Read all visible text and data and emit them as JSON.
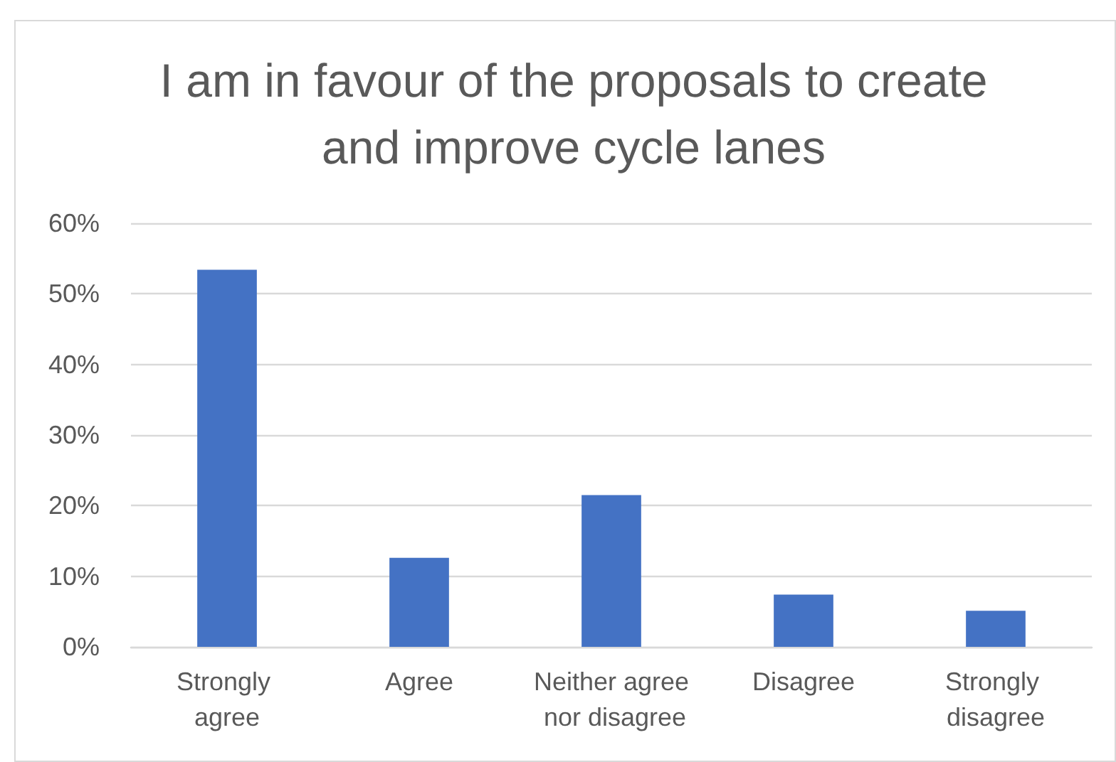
{
  "chart_data": {
    "type": "bar",
    "title": "I am in favour of the proposals to create and improve cycle lanes",
    "categories": [
      "Strongly agree",
      "Agree",
      "Neither agree nor disagree",
      "Disagree",
      "Strongly disagree"
    ],
    "values": [
      53.4,
      12.6,
      21.5,
      7.4,
      5.1
    ],
    "color": "#4472c4",
    "ylim": [
      0,
      60
    ],
    "yticks": [
      {
        "value": 0,
        "label": "0%"
      },
      {
        "value": 10,
        "label": "10%"
      },
      {
        "value": 20,
        "label": "20%"
      },
      {
        "value": 30,
        "label": "30%"
      },
      {
        "value": 40,
        "label": "40%"
      },
      {
        "value": 50,
        "label": "50%"
      },
      {
        "value": 60,
        "label": "60%"
      }
    ],
    "grid": "y"
  }
}
